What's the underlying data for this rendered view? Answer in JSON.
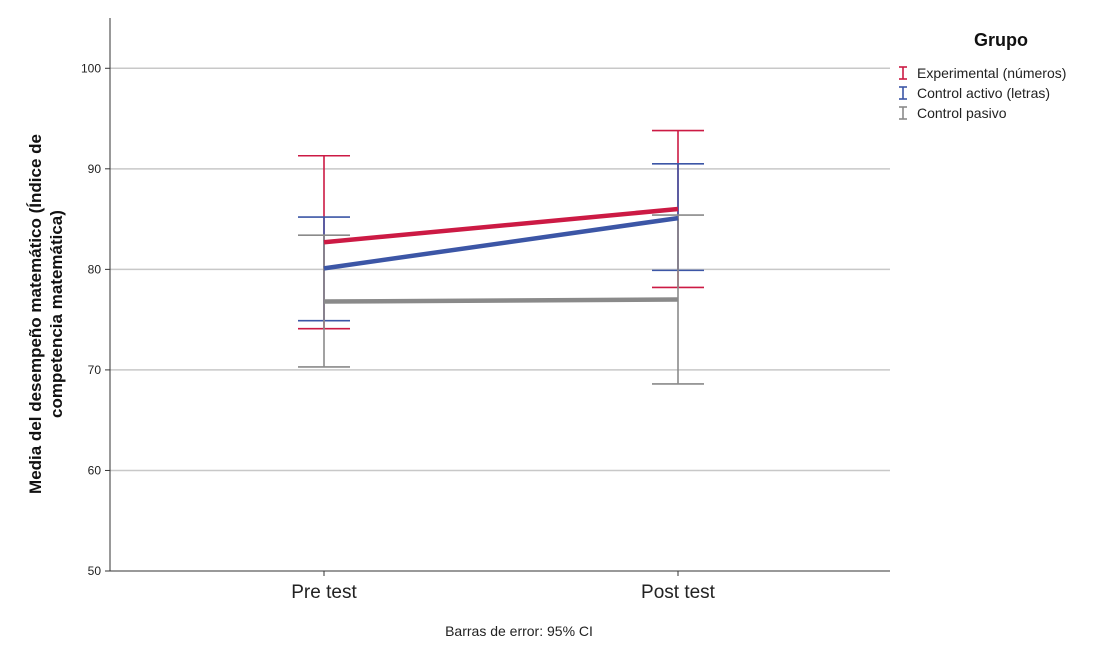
{
  "chart_data": {
    "type": "line",
    "title": "",
    "ylabel_lines": [
      "Media del desempeño matemático (Índice de",
      "competencia matemática)"
    ],
    "xlabel": "",
    "categories": [
      "Pre test",
      "Post test"
    ],
    "ylim": [
      50,
      105
    ],
    "yticks": [
      50,
      60,
      70,
      80,
      90,
      100
    ],
    "grid": true,
    "legend": {
      "title": "Grupo",
      "placement": "top-right"
    },
    "footnote": "Barras de error: 95% CI",
    "series": [
      {
        "name": "Experimental (números)",
        "color": "#cc1a44",
        "values": [
          82.7,
          86.0
        ],
        "ci_low": [
          74.1,
          78.2
        ],
        "ci_high": [
          91.3,
          93.8
        ]
      },
      {
        "name": "Control activo (letras)",
        "color": "#3c56a6",
        "values": [
          80.1,
          85.1
        ],
        "ci_low": [
          74.9,
          79.9
        ],
        "ci_high": [
          85.2,
          90.5
        ]
      },
      {
        "name": "Control pasivo",
        "color": "#8a8a8a",
        "values": [
          76.8,
          77.0
        ],
        "ci_low": [
          70.3,
          68.6
        ],
        "ci_high": [
          83.4,
          85.4
        ]
      }
    ]
  }
}
